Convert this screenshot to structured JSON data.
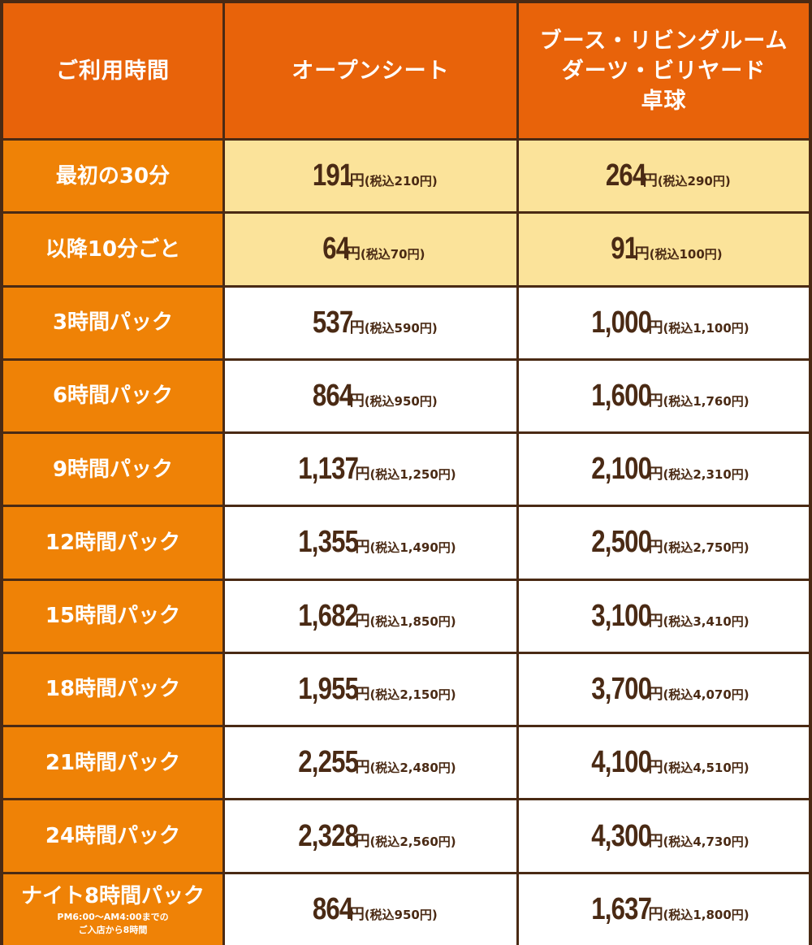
{
  "header": {
    "col1": "ご利用時間",
    "col2": "オープンシート",
    "col3_lines": [
      "ブース・リビングルーム",
      "ダーツ・ビリヤード",
      "卓球"
    ]
  },
  "yen_unit": "円",
  "tax_prefix": "(税込",
  "tax_suffix": "円)",
  "rows": [
    {
      "label": "最初の30分",
      "open": "191",
      "open_tax": "210",
      "booth": "264",
      "booth_tax": "290",
      "highlight": true
    },
    {
      "label": "以降10分ごと",
      "open": "64",
      "open_tax": "70",
      "booth": "91",
      "booth_tax": "100",
      "highlight": true
    },
    {
      "label": "3時間パック",
      "open": "537",
      "open_tax": "590",
      "booth": "1,000",
      "booth_tax": "1,100",
      "highlight": false
    },
    {
      "label": "6時間パック",
      "open": "864",
      "open_tax": "950",
      "booth": "1,600",
      "booth_tax": "1,760",
      "highlight": false
    },
    {
      "label": "9時間パック",
      "open": "1,137",
      "open_tax": "1,250",
      "booth": "2,100",
      "booth_tax": "2,310",
      "highlight": false
    },
    {
      "label": "12時間パック",
      "open": "1,355",
      "open_tax": "1,490",
      "booth": "2,500",
      "booth_tax": "2,750",
      "highlight": false
    },
    {
      "label": "15時間パック",
      "open": "1,682",
      "open_tax": "1,850",
      "booth": "3,100",
      "booth_tax": "3,410",
      "highlight": false
    },
    {
      "label": "18時間パック",
      "open": "1,955",
      "open_tax": "2,150",
      "booth": "3,700",
      "booth_tax": "4,070",
      "highlight": false
    },
    {
      "label": "21時間パック",
      "open": "2,255",
      "open_tax": "2,480",
      "booth": "4,100",
      "booth_tax": "4,510",
      "highlight": false
    },
    {
      "label": "24時間パック",
      "open": "2,328",
      "open_tax": "2,560",
      "booth": "4,300",
      "booth_tax": "4,730",
      "highlight": false
    },
    {
      "label": "ナイト8時間パック",
      "note_lines": [
        "PM6:00〜AM4:00までの",
        "ご入店から8時間"
      ],
      "open": "864",
      "open_tax": "950",
      "booth": "1,637",
      "booth_tax": "1,800",
      "highlight": false
    }
  ],
  "colors": {
    "border": "#4a2a14",
    "header": "#e8630a",
    "label": "#ef8206",
    "highlight": "#fbe39a",
    "text": "#4a2a14"
  }
}
